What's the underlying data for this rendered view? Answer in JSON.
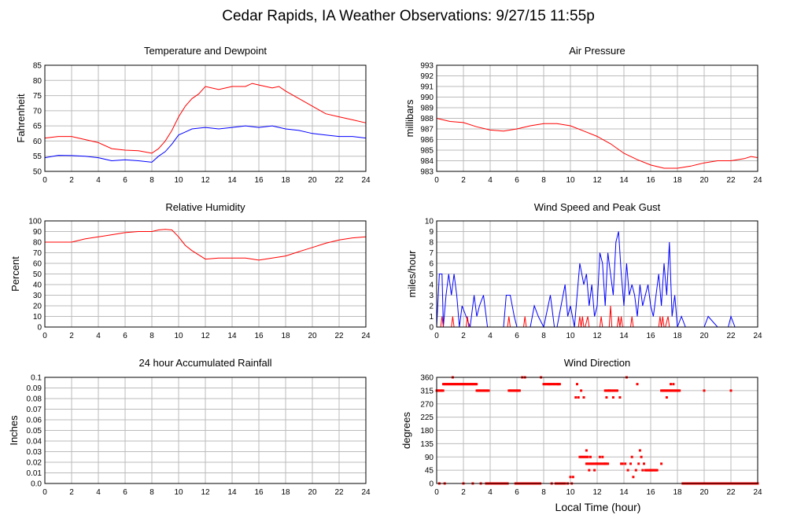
{
  "page_title": "Cedar Rapids, IA Weather Observations: 9/27/15 11:55p",
  "shared_xlabel": "Local Time (hour)",
  "colors": {
    "red": "#ff0000",
    "blue": "#0000ff",
    "grid": "#bbbbbb"
  },
  "chart_data": [
    {
      "id": "temp",
      "type": "line",
      "title": "Temperature and Dewpoint",
      "xlabel": "",
      "ylabel": "Fahrenheit",
      "xlim": [
        0,
        24
      ],
      "ylim": [
        50,
        85
      ],
      "xticks": [
        0,
        2,
        4,
        6,
        8,
        10,
        12,
        14,
        16,
        18,
        20,
        22,
        24
      ],
      "yticks": [
        50,
        55,
        60,
        65,
        70,
        75,
        80,
        85
      ],
      "grid": true,
      "series": [
        {
          "color": "#ff0000",
          "x": [
            0,
            1,
            2,
            3,
            4,
            5,
            6,
            7,
            8,
            8.5,
            9,
            9.5,
            10,
            10.5,
            11,
            11.5,
            12,
            13,
            14,
            15,
            15.5,
            16,
            17,
            17.5,
            18,
            19,
            20,
            21,
            22,
            23,
            24
          ],
          "y": [
            61,
            61.5,
            61.5,
            60.5,
            59.5,
            57.5,
            57,
            56.8,
            56,
            57.5,
            60,
            63.5,
            68,
            71.5,
            74,
            75.5,
            78,
            77,
            78,
            78,
            79,
            78.5,
            77.5,
            78,
            76.5,
            74,
            71.5,
            69,
            68,
            67,
            66
          ]
        },
        {
          "color": "#0000ff",
          "x": [
            0,
            1,
            2,
            3,
            4,
            5,
            6,
            7,
            8,
            8.5,
            9,
            9.5,
            10,
            10.5,
            11,
            12,
            13,
            14,
            15,
            16,
            17,
            18,
            19,
            20,
            21,
            22,
            23,
            24
          ],
          "y": [
            54.5,
            55.3,
            55.2,
            55,
            54.5,
            53.5,
            53.8,
            53.5,
            53,
            55,
            56.5,
            59,
            62,
            63,
            64,
            64.5,
            64,
            64.5,
            65,
            64.5,
            65,
            64,
            63.5,
            62.5,
            62,
            61.5,
            61.5,
            61
          ]
        }
      ]
    },
    {
      "id": "pressure",
      "type": "line",
      "title": "Air Pressure",
      "xlabel": "",
      "ylabel": "millibars",
      "xlim": [
        0,
        24
      ],
      "ylim": [
        983,
        993
      ],
      "xticks": [
        0,
        2,
        4,
        6,
        8,
        10,
        12,
        14,
        16,
        18,
        20,
        22,
        24
      ],
      "yticks": [
        983,
        984,
        985,
        986,
        987,
        988,
        989,
        990,
        991,
        992,
        993
      ],
      "grid": true,
      "series": [
        {
          "color": "#ff0000",
          "x": [
            0,
            1,
            2,
            3,
            4,
            5,
            6,
            7,
            8,
            9,
            10,
            11,
            12,
            13,
            14,
            15,
            16,
            17,
            18,
            19,
            20,
            21,
            22,
            23,
            23.5,
            24
          ],
          "y": [
            988,
            987.7,
            987.6,
            987.2,
            986.9,
            986.8,
            987,
            987.3,
            987.5,
            987.5,
            987.3,
            986.8,
            986.3,
            985.6,
            984.7,
            984.1,
            983.6,
            983.3,
            983.3,
            983.5,
            983.8,
            984,
            984,
            984.2,
            984.4,
            984.3
          ]
        }
      ]
    },
    {
      "id": "humidity",
      "type": "line",
      "title": "Relative Humidity",
      "xlabel": "",
      "ylabel": "Percent",
      "xlim": [
        0,
        24
      ],
      "ylim": [
        0,
        100
      ],
      "xticks": [
        0,
        2,
        4,
        6,
        8,
        10,
        12,
        14,
        16,
        18,
        20,
        22,
        24
      ],
      "yticks": [
        0,
        10,
        20,
        30,
        40,
        50,
        60,
        70,
        80,
        90,
        100
      ],
      "grid": true,
      "series": [
        {
          "color": "#ff0000",
          "x": [
            0,
            1,
            2,
            3,
            4,
            5,
            6,
            7,
            8,
            8.5,
            9,
            9.5,
            10,
            10.5,
            11,
            11.5,
            12,
            13,
            14,
            15,
            16,
            17,
            18,
            19,
            20,
            21,
            22,
            23,
            24
          ],
          "y": [
            80,
            80,
            80,
            83,
            85,
            87,
            89,
            90,
            90,
            91.5,
            92,
            91.5,
            85,
            77,
            72,
            68,
            64,
            65,
            65,
            65,
            63,
            65,
            67,
            71,
            75,
            79,
            82,
            84,
            85
          ]
        }
      ]
    },
    {
      "id": "wind",
      "type": "line",
      "title": "Wind Speed and Peak Gust",
      "xlabel": "",
      "ylabel": "miles/hour",
      "xlim": [
        0,
        24
      ],
      "ylim": [
        0,
        10
      ],
      "xticks": [
        0,
        2,
        4,
        6,
        8,
        10,
        12,
        14,
        16,
        18,
        20,
        22,
        24
      ],
      "yticks": [
        0,
        1,
        2,
        3,
        4,
        5,
        6,
        7,
        8,
        9,
        10
      ],
      "grid": true,
      "series": [
        {
          "color": "#0000ff",
          "x": [
            0,
            0.2,
            0.4,
            0.5,
            0.7,
            0.9,
            1.1,
            1.3,
            1.5,
            1.7,
            1.9,
            2.2,
            2.5,
            2.8,
            3.0,
            3.2,
            3.5,
            3.8,
            4.2,
            4.6,
            5.0,
            5.2,
            5.5,
            5.8,
            6.0,
            6.5,
            7.0,
            7.3,
            7.6,
            8.0,
            8.5,
            8.8,
            9.0,
            9.3,
            9.6,
            9.8,
            10.0,
            10.3,
            10.5,
            10.7,
            11.0,
            11.2,
            11.4,
            11.6,
            11.8,
            12.0,
            12.2,
            12.4,
            12.6,
            12.8,
            13.0,
            13.2,
            13.4,
            13.6,
            13.8,
            14.0,
            14.2,
            14.4,
            14.6,
            14.8,
            15.0,
            15.2,
            15.4,
            15.6,
            15.8,
            16.0,
            16.2,
            16.4,
            16.6,
            16.8,
            17.0,
            17.2,
            17.4,
            17.6,
            17.8,
            18.0,
            18.3,
            18.6,
            19.0,
            19.5,
            20.0,
            20.3,
            21.0,
            21.8,
            22.0,
            22.3,
            23.0,
            24.0
          ],
          "y": [
            0,
            5,
            5,
            0,
            3,
            5,
            3,
            5,
            3,
            0,
            2,
            1,
            0,
            3,
            1,
            2,
            3,
            0,
            0,
            0,
            0,
            3,
            3,
            1,
            0,
            0,
            0,
            2,
            1,
            0,
            3,
            0,
            0,
            2,
            4,
            1,
            2,
            0,
            3,
            6,
            4,
            5,
            2,
            4,
            1,
            2,
            7,
            6,
            2,
            7,
            5,
            3,
            8,
            9,
            5,
            2,
            6,
            3,
            4,
            3,
            1,
            4,
            2,
            3,
            4,
            2,
            1,
            3,
            5,
            2,
            6,
            3,
            8,
            1,
            3,
            0,
            1,
            0,
            0,
            0,
            0,
            1,
            0,
            0,
            1,
            0,
            0,
            0
          ]
        },
        {
          "color": "#ff0000",
          "x": [
            0,
            0.3,
            0.4,
            0.5,
            1.1,
            1.2,
            1.3,
            2.2,
            2.3,
            2.4,
            5.3,
            5.4,
            5.5,
            6.5,
            6.6,
            6.7,
            10.6,
            10.7,
            10.8,
            10.9,
            11.0,
            11.1,
            11.3,
            11.4,
            11.5,
            12.2,
            12.3,
            12.4,
            12.9,
            13.0,
            13.1,
            13.5,
            13.6,
            13.7,
            13.8,
            13.9,
            14.0,
            14.5,
            14.6,
            14.7,
            16.6,
            16.7,
            16.8,
            16.9,
            17.0,
            17.1,
            17.3,
            17.4,
            17.5,
            24
          ],
          "y": [
            0,
            0,
            1,
            0,
            0,
            1,
            0,
            0,
            1,
            0,
            0,
            1,
            0,
            0,
            1,
            0,
            0,
            1,
            0,
            1,
            0,
            0,
            1,
            0,
            0,
            0,
            1,
            0,
            0,
            2,
            0,
            0,
            1,
            0,
            1,
            0,
            0,
            0,
            1,
            0,
            0,
            1,
            0,
            1,
            0,
            0,
            1,
            0,
            0,
            0
          ]
        }
      ]
    },
    {
      "id": "rain",
      "type": "line",
      "title": "24 hour Accumulated Rainfall",
      "xlabel": "",
      "ylabel": "Inches",
      "xlim": [
        0,
        24
      ],
      "ylim": [
        0,
        0.1
      ],
      "xticks": [
        0,
        2,
        4,
        6,
        8,
        10,
        12,
        14,
        16,
        18,
        20,
        22,
        24
      ],
      "yticks": [
        0.0,
        0.01,
        0.02,
        0.03,
        0.04,
        0.05,
        0.06,
        0.07,
        0.08,
        0.09,
        0.1
      ],
      "ytick_labels": [
        "0.0",
        "0.01",
        "0.02",
        "0.03",
        "0.04",
        "0.05",
        "0.06",
        "0.07",
        "0.08",
        "0.09",
        "0.1"
      ],
      "grid": true,
      "series": [
        {
          "color": "#ff0000",
          "x": [
            0,
            24
          ],
          "y": [
            0,
            0
          ]
        }
      ]
    },
    {
      "id": "direction",
      "type": "scatter",
      "title": "Wind Direction",
      "xlabel": "Local Time (hour)",
      "ylabel": "degrees",
      "xlim": [
        0,
        24
      ],
      "ylim": [
        0,
        360
      ],
      "xticks": [
        0,
        2,
        4,
        6,
        8,
        10,
        12,
        14,
        16,
        18,
        20,
        22,
        24
      ],
      "yticks": [
        0,
        45,
        90,
        135,
        180,
        225,
        270,
        315,
        360
      ],
      "grid": true,
      "point_segments": [
        {
          "x0": 0.0,
          "x1": 0.5,
          "y": 315,
          "step": 0.08
        },
        {
          "x0": 0.5,
          "x1": 3.0,
          "y": 337,
          "step": 0.08
        },
        {
          "x0": 3.0,
          "x1": 3.9,
          "y": 315,
          "step": 0.08
        },
        {
          "x0": 3.7,
          "x1": 5.3,
          "y": 0,
          "step": 0.08
        },
        {
          "x0": 5.4,
          "x1": 6.2,
          "y": 315,
          "step": 0.08
        },
        {
          "x0": 5.9,
          "x1": 7.8,
          "y": 0,
          "step": 0.08
        },
        {
          "x0": 8.0,
          "x1": 9.2,
          "y": 337,
          "step": 0.1
        },
        {
          "x0": 9.0,
          "x1": 9.6,
          "y": 0,
          "step": 0.08
        },
        {
          "x0": 10.7,
          "x1": 11.4,
          "y": 90,
          "step": 0.12
        },
        {
          "x0": 11.2,
          "x1": 12.8,
          "y": 67,
          "step": 0.1
        },
        {
          "x0": 12.6,
          "x1": 13.4,
          "y": 315,
          "step": 0.1
        },
        {
          "x0": 15.6,
          "x1": 16.5,
          "y": 45,
          "step": 0.08
        },
        {
          "x0": 16.8,
          "x1": 18.2,
          "y": 315,
          "step": 0.08
        },
        {
          "x0": 18.4,
          "x1": 24.0,
          "y": 0,
          "step": 0.08
        }
      ],
      "points_x": [
        0.2,
        0.6,
        1.2,
        2.7,
        6.4,
        6.6,
        7.8,
        8.4,
        9.1,
        9.3,
        9.6,
        9.8,
        10.0,
        10.1,
        10.2,
        10.4,
        10.6,
        10.8,
        11.0,
        11.2,
        11.5,
        11.8,
        12.0,
        12.2,
        12.4,
        12.6,
        12.7,
        13.5,
        13.7,
        13.9,
        14.1,
        14.3,
        14.5,
        14.6,
        14.7,
        14.9,
        15.0,
        15.1,
        15.2,
        15.3,
        15.5,
        16.8,
        17.2,
        17.5,
        17.7,
        20.0,
        22.0,
        8.6,
        8.9,
        10.5,
        11.4,
        13.8,
        14.2,
        12.9,
        13.2,
        15.4,
        16.0,
        2.0,
        3.3
      ],
      "points_y": [
        0,
        0,
        360,
        0,
        360,
        360,
        360,
        337,
        337,
        0,
        0,
        0,
        22,
        0,
        22,
        292,
        292,
        315,
        292,
        112,
        90,
        45,
        67,
        90,
        90,
        67,
        292,
        315,
        292,
        67,
        67,
        45,
        67,
        90,
        22,
        45,
        337,
        67,
        112,
        90,
        67,
        67,
        292,
        337,
        337,
        315,
        315,
        0,
        0,
        337,
        45,
        67,
        360,
        315,
        292,
        45,
        45,
        0,
        0
      ]
    }
  ]
}
